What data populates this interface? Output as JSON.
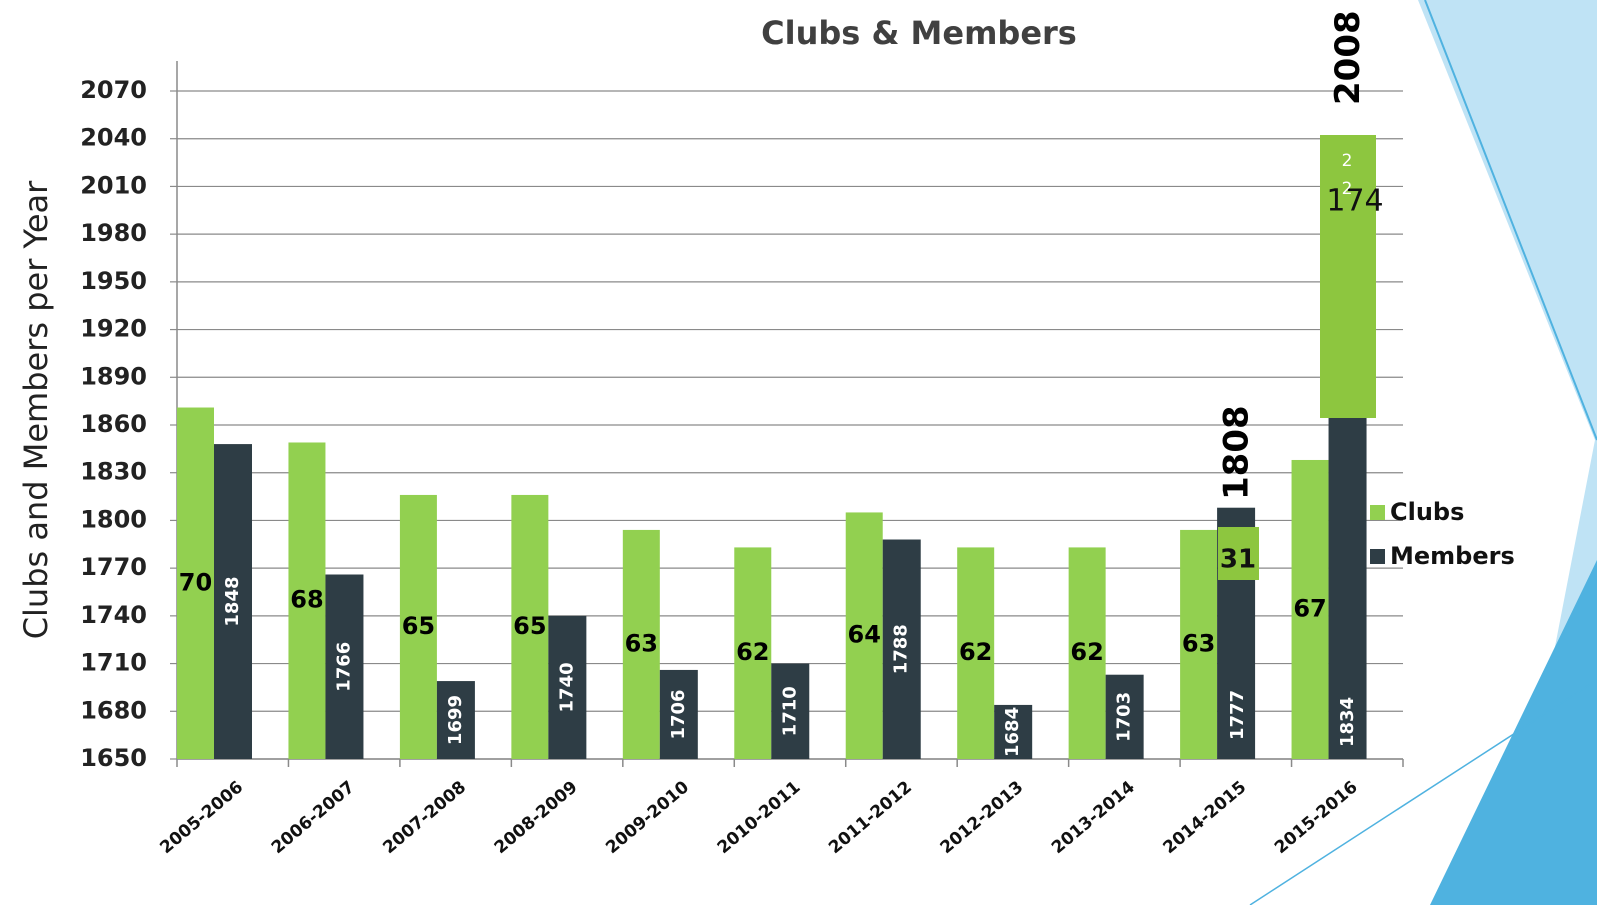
{
  "chart_data": {
    "type": "bar",
    "title": "Clubs & Members",
    "y_label": "Clubs and Members per Year",
    "categories": [
      "2005-2006",
      "2006-2007",
      "2007-2008",
      "2008-2009",
      "2009-2010",
      "2010-2011",
      "2011-2012",
      "2012-2013",
      "2013-2014",
      "2014-2015",
      "2015-2016"
    ],
    "series": [
      {
        "name": "Clubs",
        "color": "#92d050",
        "axis": "y2",
        "values": [
          70,
          68,
          65,
          65,
          63,
          62,
          64,
          62,
          62,
          63,
          67
        ]
      },
      {
        "name": "Members",
        "color": "#2e3d45",
        "values": [
          1848,
          1766,
          1699,
          1740,
          1706,
          1710,
          1788,
          1684,
          1703,
          1808,
          2008
        ]
      }
    ],
    "ylim": [
      1650,
      2070
    ],
    "yticks": [
      1650,
      1680,
      1710,
      1740,
      1770,
      1800,
      1830,
      1860,
      1890,
      1920,
      1950,
      1980,
      2010,
      2040,
      2070
    ],
    "y2lim": [
      49.9,
      88.1
    ],
    "grid": true,
    "legend": "right",
    "annotations": [
      {
        "text": "1777"
      },
      {
        "text": "1834"
      },
      {
        "text": "174"
      },
      {
        "text": "31"
      },
      {
        "text": "2"
      },
      {
        "text": "2"
      }
    ]
  }
}
